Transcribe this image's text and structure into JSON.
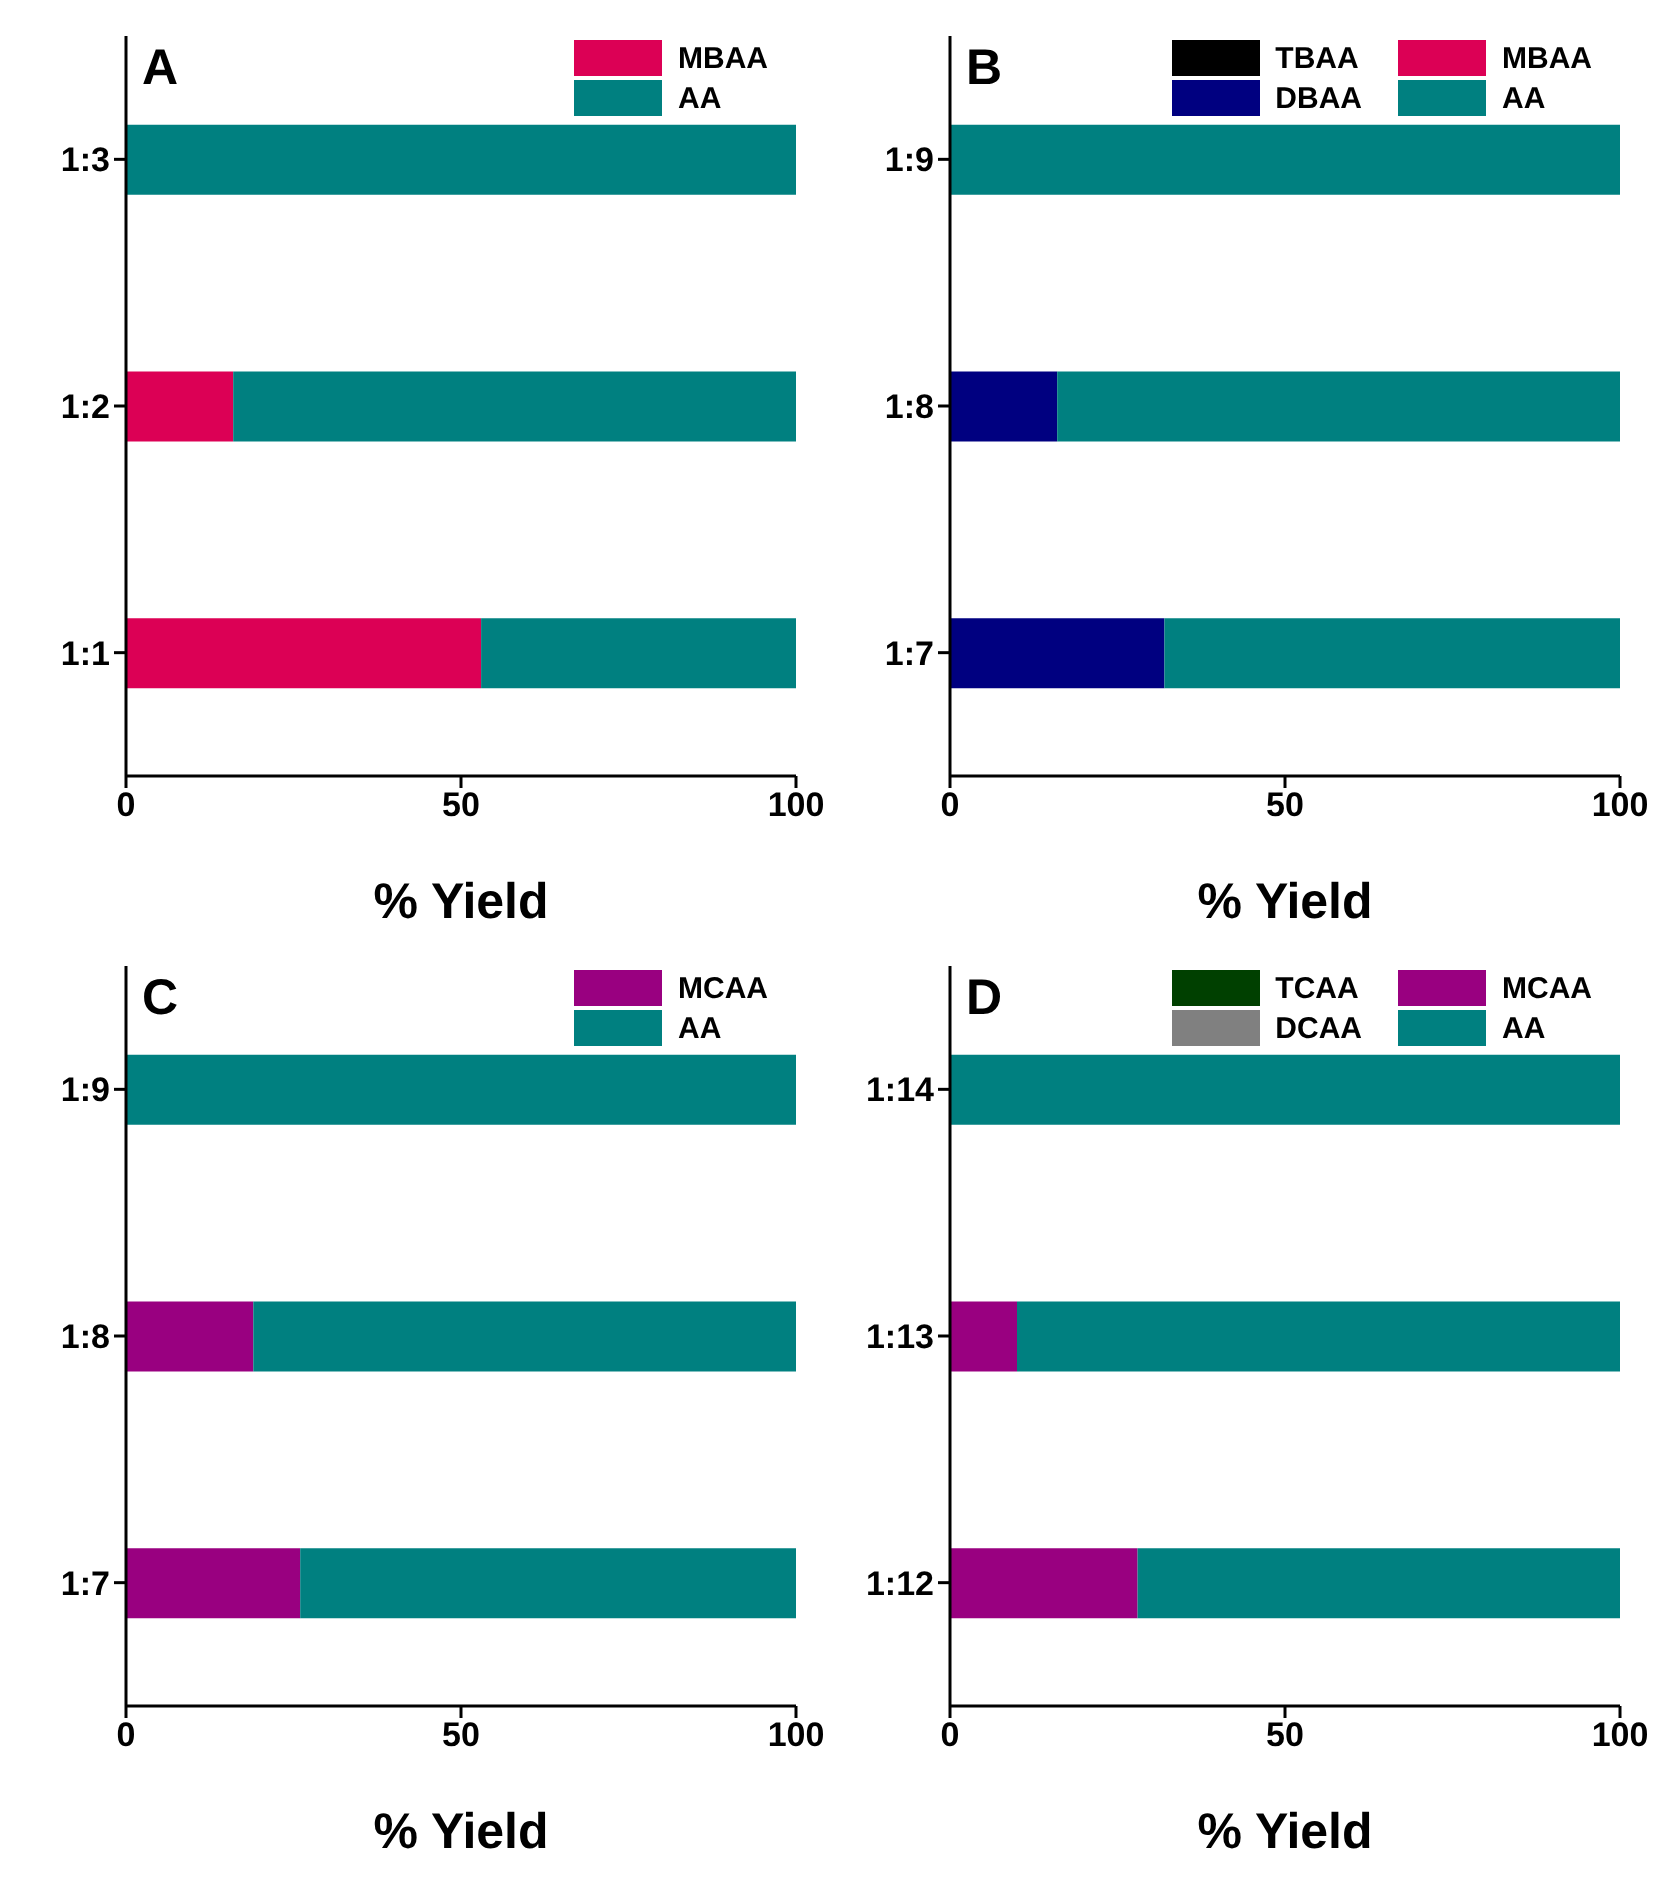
{
  "chart_data": [
    {
      "type": "bar",
      "title": "A",
      "orientation": "horizontal",
      "stacked": true,
      "categories": [
        "1:3",
        "1:2",
        "1:1"
      ],
      "xlabel": "% Yield",
      "xlim": [
        0,
        100
      ],
      "xticks": [
        0,
        50,
        100
      ],
      "legend": "top right",
      "series": [
        {
          "name": "MBAA",
          "color": "#dc0055",
          "values": [
            0,
            16,
            53
          ]
        },
        {
          "name": "AA",
          "color": "#008080",
          "values": [
            100,
            84,
            47
          ]
        }
      ]
    },
    {
      "type": "bar",
      "title": "B",
      "orientation": "horizontal",
      "stacked": true,
      "categories": [
        "1:9",
        "1:8",
        "1:7"
      ],
      "xlabel": "% Yield",
      "xlim": [
        0,
        100
      ],
      "xticks": [
        0,
        50,
        100
      ],
      "legend": "top right",
      "series": [
        {
          "name": "TBAA",
          "color": "#000000",
          "values": [
            0,
            0,
            0
          ]
        },
        {
          "name": "DBAA",
          "color": "#000080",
          "values": [
            0,
            16,
            32
          ]
        },
        {
          "name": "MBAA",
          "color": "#dc0055",
          "values": [
            0,
            0,
            0
          ]
        },
        {
          "name": "AA",
          "color": "#008080",
          "values": [
            100,
            84,
            68
          ]
        }
      ]
    },
    {
      "type": "bar",
      "title": "C",
      "orientation": "horizontal",
      "stacked": true,
      "categories": [
        "1:9",
        "1:8",
        "1:7"
      ],
      "xlabel": "% Yield",
      "xlim": [
        0,
        100
      ],
      "xticks": [
        0,
        50,
        100
      ],
      "legend": "top right",
      "series": [
        {
          "name": "MCAA",
          "color": "#990080",
          "values": [
            0,
            19,
            26
          ]
        },
        {
          "name": "AA",
          "color": "#008080",
          "values": [
            100,
            81,
            74
          ]
        }
      ]
    },
    {
      "type": "bar",
      "title": "D",
      "orientation": "horizontal",
      "stacked": true,
      "categories": [
        "1:14",
        "1:13",
        "1:12"
      ],
      "xlabel": "% Yield",
      "xlim": [
        0,
        100
      ],
      "xticks": [
        0,
        50,
        100
      ],
      "legend": "top right",
      "series": [
        {
          "name": "TCAA",
          "color": "#004000",
          "values": [
            0,
            0,
            0
          ]
        },
        {
          "name": "DCAA",
          "color": "#808080",
          "values": [
            0,
            0,
            0
          ]
        },
        {
          "name": "MCAA",
          "color": "#990080",
          "values": [
            0,
            10,
            28
          ]
        },
        {
          "name": "AA",
          "color": "#008080",
          "values": [
            100,
            90,
            72
          ]
        }
      ]
    }
  ]
}
